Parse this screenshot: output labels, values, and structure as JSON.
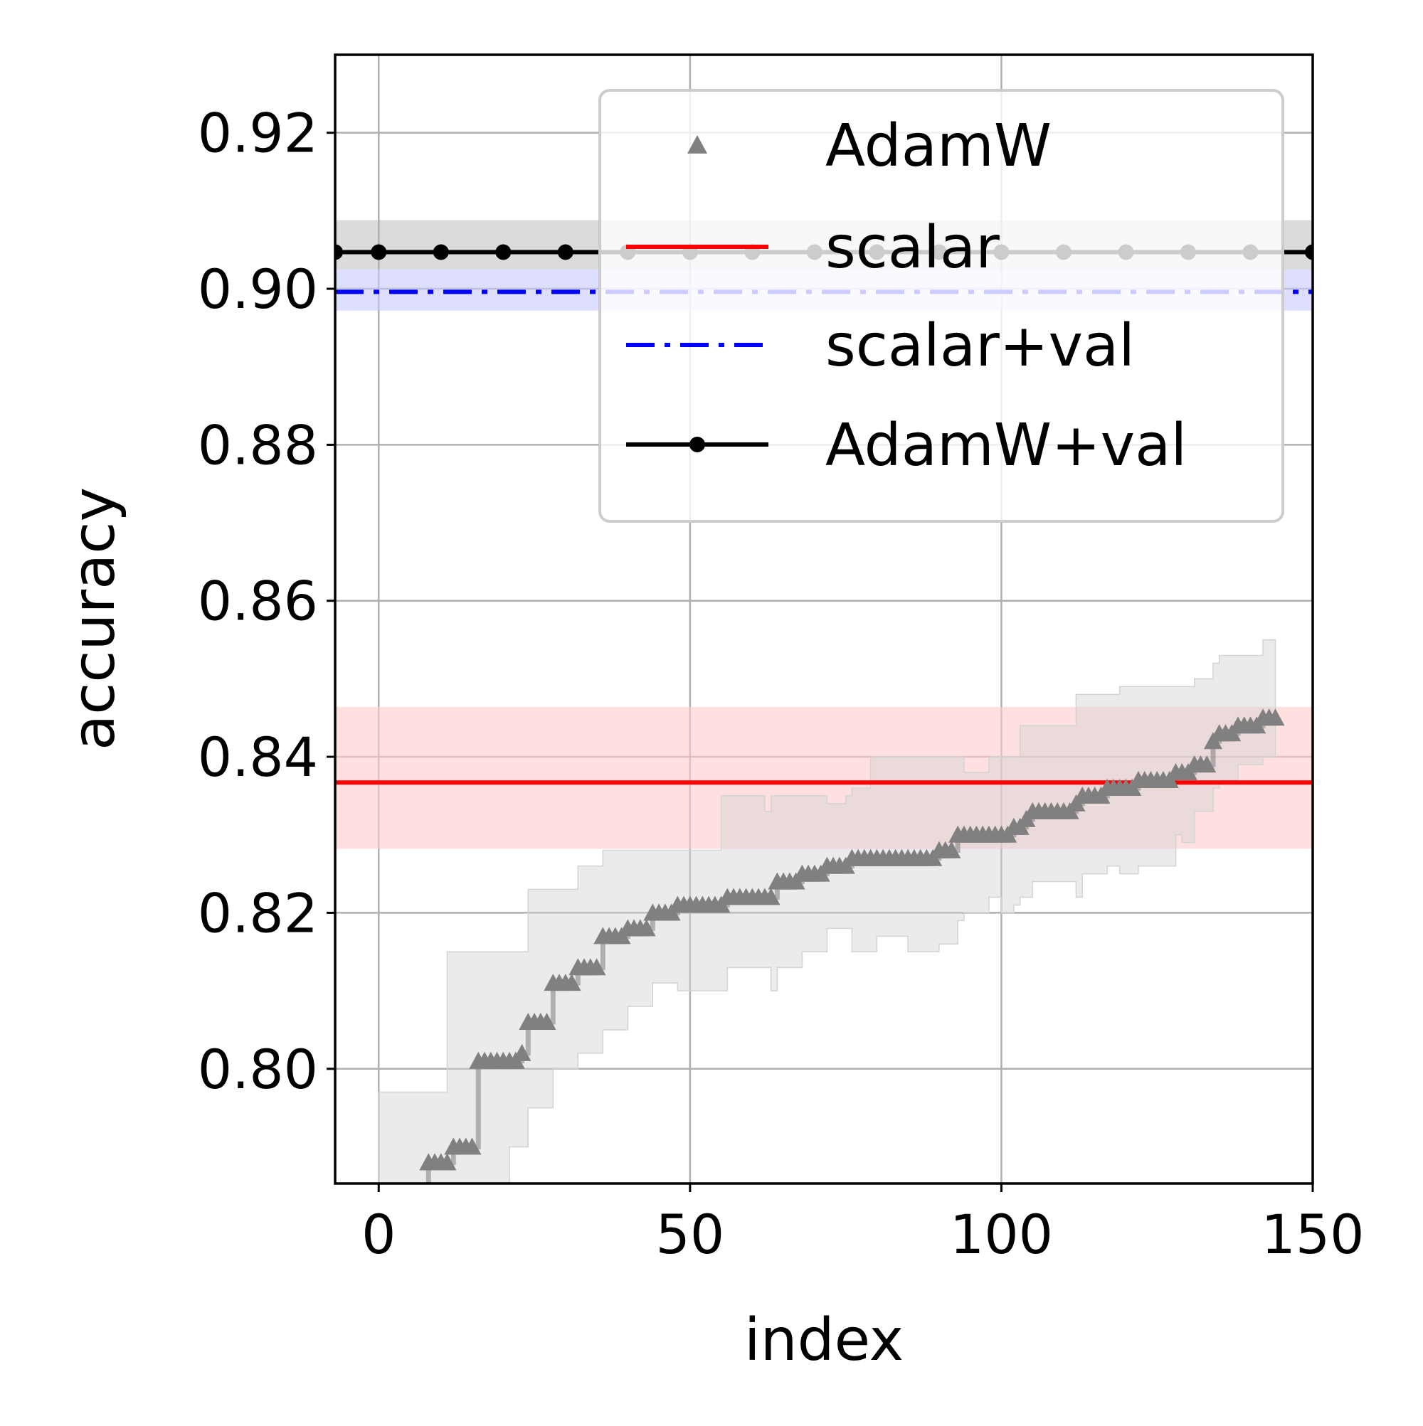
{
  "chart_data": {
    "type": "line",
    "xlabel": "index",
    "ylabel": "accuracy",
    "xlim": [
      -7,
      150
    ],
    "ylim": [
      0.7853,
      0.93
    ],
    "xticks": [
      0,
      50,
      100,
      150
    ],
    "xtick_labels": [
      "0",
      "50",
      "100",
      "150"
    ],
    "yticks": [
      0.8,
      0.82,
      0.84,
      0.86,
      0.88,
      0.9,
      0.92
    ],
    "ytick_labels": [
      "0.80",
      "0.82",
      "0.84",
      "0.86",
      "0.88",
      "0.90",
      "0.92"
    ],
    "grid": true,
    "legend_position": "top-right",
    "legend": [
      "AdamW",
      "scalar",
      "scalar+val",
      "AdamW+val"
    ],
    "colors": {
      "adamw": "#808080",
      "adamw_band": "#d3d3d3",
      "scalar": "#ff0000",
      "scalar_band": "#ffcccc",
      "scalar_val": "#0000ff",
      "scalar_val_band": "#c8c8ff",
      "adamw_val": "#000000",
      "adamw_val_band": "#b0b0b0",
      "grid": "#b0b0b0"
    },
    "series": [
      {
        "name": "AdamW",
        "kind": "sorted-markers",
        "x": [
          0,
          8,
          11,
          12,
          16,
          21,
          23,
          24,
          27,
          28,
          31,
          32,
          35,
          36,
          38,
          40,
          43,
          44,
          47,
          48,
          55,
          56,
          62,
          63,
          64,
          67,
          68,
          71,
          72,
          75,
          76,
          79,
          80,
          85,
          90,
          91,
          93,
          94,
          98,
          100,
          102,
          103,
          104,
          105,
          110,
          112,
          113,
          114,
          117,
          119,
          122,
          126,
          128,
          129,
          131,
          132,
          134,
          135,
          137,
          138,
          142,
          144
        ],
        "y": [
          0.774,
          0.788,
          0.788,
          0.79,
          0.801,
          0.801,
          0.802,
          0.806,
          0.806,
          0.811,
          0.811,
          0.813,
          0.813,
          0.817,
          0.817,
          0.818,
          0.818,
          0.82,
          0.82,
          0.821,
          0.821,
          0.822,
          0.822,
          0.822,
          0.824,
          0.824,
          0.825,
          0.825,
          0.826,
          0.826,
          0.827,
          0.827,
          0.827,
          0.827,
          0.828,
          0.828,
          0.83,
          0.83,
          0.83,
          0.83,
          0.831,
          0.831,
          0.832,
          0.833,
          0.833,
          0.834,
          0.835,
          0.835,
          0.836,
          0.836,
          0.837,
          0.837,
          0.838,
          0.838,
          0.839,
          0.839,
          0.842,
          0.843,
          0.843,
          0.844,
          0.845,
          0.845
        ],
        "band_upper": [
          0.797,
          0.797,
          0.815,
          0.815,
          0.815,
          0.815,
          0.815,
          0.823,
          0.823,
          0.823,
          0.823,
          0.826,
          0.826,
          0.828,
          0.828,
          0.828,
          0.828,
          0.828,
          0.828,
          0.828,
          0.835,
          0.835,
          0.833,
          0.835,
          0.835,
          0.835,
          0.835,
          0.835,
          0.834,
          0.835,
          0.836,
          0.84,
          0.84,
          0.84,
          0.84,
          0.84,
          0.84,
          0.838,
          0.84,
          0.84,
          0.84,
          0.844,
          0.844,
          0.844,
          0.844,
          0.848,
          0.848,
          0.848,
          0.848,
          0.849,
          0.849,
          0.849,
          0.849,
          0.849,
          0.85,
          0.85,
          0.852,
          0.853,
          0.853,
          0.853,
          0.855,
          0.855
        ],
        "band_lower": [
          0.775,
          0.775,
          0.775,
          0.775,
          0.775,
          0.79,
          0.79,
          0.795,
          0.795,
          0.8,
          0.8,
          0.802,
          0.802,
          0.805,
          0.805,
          0.808,
          0.808,
          0.811,
          0.811,
          0.81,
          0.81,
          0.813,
          0.813,
          0.81,
          0.813,
          0.813,
          0.815,
          0.815,
          0.818,
          0.818,
          0.815,
          0.815,
          0.817,
          0.815,
          0.816,
          0.816,
          0.819,
          0.82,
          0.822,
          0.82,
          0.821,
          0.822,
          0.822,
          0.824,
          0.824,
          0.822,
          0.825,
          0.825,
          0.826,
          0.825,
          0.826,
          0.826,
          0.83,
          0.829,
          0.833,
          0.833,
          0.836,
          0.837,
          0.837,
          0.839,
          0.84,
          0.84
        ]
      },
      {
        "name": "scalar",
        "kind": "constant",
        "value": 0.8367,
        "band": [
          0.8282,
          0.8464
        ]
      },
      {
        "name": "scalar+val",
        "kind": "constant",
        "value": 0.8996,
        "band": [
          0.8972,
          0.9025
        ]
      },
      {
        "name": "AdamW+val",
        "kind": "constant-markers",
        "value": 0.9047,
        "band": [
          0.9025,
          0.9088
        ],
        "marker_x": [
          -7,
          0,
          10,
          20,
          30,
          40,
          50,
          60,
          70,
          80,
          90,
          100,
          110,
          120,
          130,
          140,
          150
        ]
      }
    ]
  }
}
